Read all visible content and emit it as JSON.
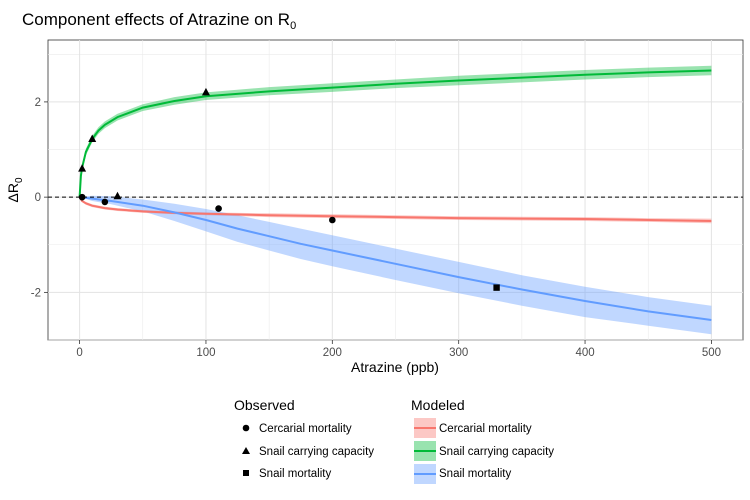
{
  "chart_data": {
    "type": "line",
    "title": "Component effects of Atrazine on R",
    "title_subscript": "0",
    "xlabel": "Atrazine (ppb)",
    "ylabel_delta": "ΔR",
    "ylabel_subscript": "0",
    "xlim": [
      -25,
      525
    ],
    "ylim": [
      -3.0,
      3.3
    ],
    "x_ticks": [
      0,
      100,
      200,
      300,
      400,
      500
    ],
    "x_tick_labels": [
      "0",
      "100",
      "200",
      "300",
      "400",
      "500"
    ],
    "y_ticks": [
      -2,
      0,
      2
    ],
    "y_tick_labels": [
      "-2",
      "0",
      "2"
    ],
    "grid": true,
    "reference_line": {
      "y": 0,
      "style": "dashed"
    },
    "modeled": [
      {
        "name": "Cercarial mortality",
        "color": "#f8766d",
        "x": [
          0,
          2,
          5,
          10,
          20,
          30,
          50,
          75,
          100,
          150,
          200,
          250,
          300,
          350,
          400,
          450,
          500
        ],
        "y": [
          0,
          -0.08,
          -0.13,
          -0.18,
          -0.23,
          -0.26,
          -0.3,
          -0.33,
          -0.35,
          -0.38,
          -0.4,
          -0.42,
          -0.44,
          -0.45,
          -0.46,
          -0.48,
          -0.5
        ],
        "lower": [
          0,
          -0.1,
          -0.16,
          -0.21,
          -0.26,
          -0.29,
          -0.33,
          -0.36,
          -0.38,
          -0.42,
          -0.44,
          -0.46,
          -0.48,
          -0.49,
          -0.5,
          -0.52,
          -0.55
        ],
        "upper": [
          0,
          -0.06,
          -0.1,
          -0.15,
          -0.2,
          -0.23,
          -0.27,
          -0.3,
          -0.32,
          -0.34,
          -0.36,
          -0.38,
          -0.4,
          -0.41,
          -0.42,
          -0.44,
          -0.45
        ]
      },
      {
        "name": "Snail carrying capacity",
        "color": "#00ba38",
        "x": [
          0,
          1,
          2,
          5,
          10,
          15,
          20,
          30,
          50,
          75,
          100,
          150,
          200,
          250,
          300,
          350,
          400,
          450,
          500
        ],
        "y": [
          0,
          0.45,
          0.62,
          0.95,
          1.22,
          1.4,
          1.52,
          1.68,
          1.88,
          2.02,
          2.12,
          2.22,
          2.3,
          2.38,
          2.45,
          2.51,
          2.57,
          2.62,
          2.66
        ],
        "lower": [
          0,
          0.4,
          0.56,
          0.88,
          1.15,
          1.33,
          1.45,
          1.61,
          1.81,
          1.94,
          2.04,
          2.14,
          2.21,
          2.29,
          2.35,
          2.41,
          2.47,
          2.52,
          2.56
        ],
        "upper": [
          0,
          0.5,
          0.68,
          1.02,
          1.29,
          1.47,
          1.59,
          1.75,
          1.95,
          2.1,
          2.2,
          2.31,
          2.39,
          2.47,
          2.55,
          2.61,
          2.67,
          2.72,
          2.76
        ]
      },
      {
        "name": "Snail mortality",
        "color": "#619cff",
        "x": [
          0,
          10,
          25,
          50,
          75,
          100,
          125,
          150,
          175,
          200,
          250,
          300,
          350,
          400,
          450,
          500
        ],
        "y": [
          0,
          -0.03,
          -0.08,
          -0.18,
          -0.32,
          -0.48,
          -0.66,
          -0.82,
          -0.98,
          -1.12,
          -1.4,
          -1.68,
          -1.94,
          -2.18,
          -2.4,
          -2.58
        ],
        "lower": [
          0,
          -0.08,
          -0.15,
          -0.3,
          -0.5,
          -0.72,
          -0.94,
          -1.12,
          -1.3,
          -1.45,
          -1.74,
          -2.02,
          -2.28,
          -2.52,
          -2.7,
          -2.88
        ],
        "upper": [
          0,
          0.03,
          0.02,
          -0.05,
          -0.14,
          -0.25,
          -0.38,
          -0.52,
          -0.66,
          -0.8,
          -1.08,
          -1.36,
          -1.64,
          -1.88,
          -2.1,
          -2.28
        ]
      }
    ],
    "observed": [
      {
        "name": "Cercarial mortality",
        "shape": "circle",
        "points": [
          {
            "x": 2,
            "y": 0.0
          },
          {
            "x": 20,
            "y": -0.1
          },
          {
            "x": 110,
            "y": -0.24
          },
          {
            "x": 200,
            "y": -0.48
          }
        ]
      },
      {
        "name": "Snail carrying capacity",
        "shape": "triangle",
        "points": [
          {
            "x": 2,
            "y": 0.6
          },
          {
            "x": 10,
            "y": 1.22
          },
          {
            "x": 30,
            "y": 0.02
          },
          {
            "x": 100,
            "y": 2.2
          }
        ]
      },
      {
        "name": "Snail mortality",
        "shape": "square",
        "points": [
          {
            "x": 330,
            "y": -1.9
          }
        ]
      }
    ],
    "legend": {
      "position": "bottom",
      "observed_title": "Observed",
      "modeled_title": "Modeled",
      "labels": [
        "Cercarial mortality",
        "Snail carrying capacity",
        "Snail mortality"
      ]
    }
  }
}
